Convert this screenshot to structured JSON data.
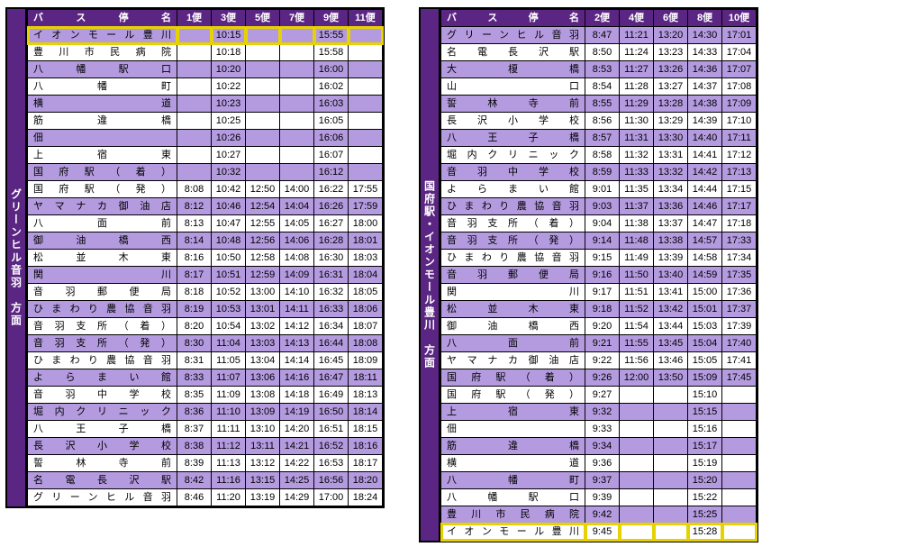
{
  "colors": {
    "header_bg": "#5b2683",
    "header_fg": "#ffffff",
    "row_even": "#b49be0",
    "row_odd": "#ffffff",
    "highlight_border": "#e6d200"
  },
  "left": {
    "direction": "グリーンヒル音羽　方面",
    "stop_header": "バス停名",
    "trip_headers": [
      "1便",
      "3便",
      "5便",
      "7便",
      "9便",
      "11便"
    ],
    "rows": [
      {
        "stop": "イオンモール豊川",
        "times": [
          "",
          "10:15",
          "",
          "",
          "15:55",
          ""
        ],
        "highlight": true
      },
      {
        "stop": "豊川市民病院",
        "times": [
          "",
          "10:18",
          "",
          "",
          "15:58",
          ""
        ]
      },
      {
        "stop": "八幡駅口",
        "times": [
          "",
          "10:20",
          "",
          "",
          "16:00",
          ""
        ]
      },
      {
        "stop": "八幡町",
        "times": [
          "",
          "10:22",
          "",
          "",
          "16:02",
          ""
        ]
      },
      {
        "stop": "横道",
        "times": [
          "",
          "10:23",
          "",
          "",
          "16:03",
          ""
        ]
      },
      {
        "stop": "筋違橋",
        "times": [
          "",
          "10:25",
          "",
          "",
          "16:05",
          ""
        ]
      },
      {
        "stop": "佃",
        "times": [
          "",
          "10:26",
          "",
          "",
          "16:06",
          ""
        ]
      },
      {
        "stop": "上宿東",
        "times": [
          "",
          "10:27",
          "",
          "",
          "16:07",
          ""
        ]
      },
      {
        "stop": "国府駅（着）",
        "times": [
          "",
          "10:32",
          "",
          "",
          "16:12",
          ""
        ]
      },
      {
        "stop": "国府駅（発）",
        "times": [
          "8:08",
          "10:42",
          "12:50",
          "14:00",
          "16:22",
          "17:55"
        ]
      },
      {
        "stop": "ヤマナカ御油店",
        "times": [
          "8:12",
          "10:46",
          "12:54",
          "14:04",
          "16:26",
          "17:59"
        ]
      },
      {
        "stop": "八面前",
        "times": [
          "8:13",
          "10:47",
          "12:55",
          "14:05",
          "16:27",
          "18:00"
        ]
      },
      {
        "stop": "御油橋西",
        "times": [
          "8:14",
          "10:48",
          "12:56",
          "14:06",
          "16:28",
          "18:01"
        ]
      },
      {
        "stop": "松並木東",
        "times": [
          "8:16",
          "10:50",
          "12:58",
          "14:08",
          "16:30",
          "18:03"
        ]
      },
      {
        "stop": "関川",
        "times": [
          "8:17",
          "10:51",
          "12:59",
          "14:09",
          "16:31",
          "18:04"
        ]
      },
      {
        "stop": "音羽郵便局",
        "times": [
          "8:18",
          "10:52",
          "13:00",
          "14:10",
          "16:32",
          "18:05"
        ]
      },
      {
        "stop": "ひまわり農協音羽",
        "times": [
          "8:19",
          "10:53",
          "13:01",
          "14:11",
          "16:33",
          "18:06"
        ]
      },
      {
        "stop": "音羽支所（着）",
        "times": [
          "8:20",
          "10:54",
          "13:02",
          "14:12",
          "16:34",
          "18:07"
        ]
      },
      {
        "stop": "音羽支所（発）",
        "times": [
          "8:30",
          "11:04",
          "13:03",
          "14:13",
          "16:44",
          "18:08"
        ]
      },
      {
        "stop": "ひまわり農協音羽",
        "times": [
          "8:31",
          "11:05",
          "13:04",
          "14:14",
          "16:45",
          "18:09"
        ]
      },
      {
        "stop": "よらまい館",
        "times": [
          "8:33",
          "11:07",
          "13:06",
          "14:16",
          "16:47",
          "18:11"
        ]
      },
      {
        "stop": "音羽中学校",
        "times": [
          "8:35",
          "11:09",
          "13:08",
          "14:18",
          "16:49",
          "18:13"
        ]
      },
      {
        "stop": "堀内クリニック",
        "times": [
          "8:36",
          "11:10",
          "13:09",
          "14:19",
          "16:50",
          "18:14"
        ]
      },
      {
        "stop": "八王子橋",
        "times": [
          "8:37",
          "11:11",
          "13:10",
          "14:20",
          "16:51",
          "18:15"
        ]
      },
      {
        "stop": "長沢小学校",
        "times": [
          "8:38",
          "11:12",
          "13:11",
          "14:21",
          "16:52",
          "18:16"
        ]
      },
      {
        "stop": "誓林寺前",
        "times": [
          "8:39",
          "11:13",
          "13:12",
          "14:22",
          "16:53",
          "18:17"
        ]
      },
      {
        "stop": "名電長沢駅",
        "times": [
          "8:42",
          "11:16",
          "13:15",
          "14:25",
          "16:56",
          "18:20"
        ]
      },
      {
        "stop": "グリーンヒル音羽",
        "times": [
          "8:46",
          "11:20",
          "13:19",
          "14:29",
          "17:00",
          "18:24"
        ]
      }
    ]
  },
  "right": {
    "direction": "国府駅・イオンモール豊川　方面",
    "stop_header": "バス停名",
    "trip_headers": [
      "2便",
      "4便",
      "6便",
      "8便",
      "10便"
    ],
    "rows": [
      {
        "stop": "グリーンヒル音羽",
        "times": [
          "8:47",
          "11:21",
          "13:20",
          "14:30",
          "17:01"
        ]
      },
      {
        "stop": "名電長沢駅",
        "times": [
          "8:50",
          "11:24",
          "13:23",
          "14:33",
          "17:04"
        ]
      },
      {
        "stop": "大榎橋",
        "times": [
          "8:53",
          "11:27",
          "13:26",
          "14:36",
          "17:07"
        ]
      },
      {
        "stop": "山口",
        "times": [
          "8:54",
          "11:28",
          "13:27",
          "14:37",
          "17:08"
        ]
      },
      {
        "stop": "誓林寺前",
        "times": [
          "8:55",
          "11:29",
          "13:28",
          "14:38",
          "17:09"
        ]
      },
      {
        "stop": "長沢小学校",
        "times": [
          "8:56",
          "11:30",
          "13:29",
          "14:39",
          "17:10"
        ]
      },
      {
        "stop": "八王子橋",
        "times": [
          "8:57",
          "11:31",
          "13:30",
          "14:40",
          "17:11"
        ]
      },
      {
        "stop": "堀内クリニック",
        "times": [
          "8:58",
          "11:32",
          "13:31",
          "14:41",
          "17:12"
        ]
      },
      {
        "stop": "音羽中学校",
        "times": [
          "8:59",
          "11:33",
          "13:32",
          "14:42",
          "17:13"
        ]
      },
      {
        "stop": "よらまい館",
        "times": [
          "9:01",
          "11:35",
          "13:34",
          "14:44",
          "17:15"
        ]
      },
      {
        "stop": "ひまわり農協音羽",
        "times": [
          "9:03",
          "11:37",
          "13:36",
          "14:46",
          "17:17"
        ]
      },
      {
        "stop": "音羽支所（着）",
        "times": [
          "9:04",
          "11:38",
          "13:37",
          "14:47",
          "17:18"
        ]
      },
      {
        "stop": "音羽支所（発）",
        "times": [
          "9:14",
          "11:48",
          "13:38",
          "14:57",
          "17:33"
        ]
      },
      {
        "stop": "ひまわり農協音羽",
        "times": [
          "9:15",
          "11:49",
          "13:39",
          "14:58",
          "17:34"
        ]
      },
      {
        "stop": "音羽郵便局",
        "times": [
          "9:16",
          "11:50",
          "13:40",
          "14:59",
          "17:35"
        ]
      },
      {
        "stop": "関川",
        "times": [
          "9:17",
          "11:51",
          "13:41",
          "15:00",
          "17:36"
        ]
      },
      {
        "stop": "松並木東",
        "times": [
          "9:18",
          "11:52",
          "13:42",
          "15:01",
          "17:37"
        ]
      },
      {
        "stop": "御油橋西",
        "times": [
          "9:20",
          "11:54",
          "13:44",
          "15:03",
          "17:39"
        ]
      },
      {
        "stop": "八面前",
        "times": [
          "9:21",
          "11:55",
          "13:45",
          "15:04",
          "17:40"
        ]
      },
      {
        "stop": "ヤマナカ御油店",
        "times": [
          "9:22",
          "11:56",
          "13:46",
          "15:05",
          "17:41"
        ]
      },
      {
        "stop": "国府駅（着）",
        "times": [
          "9:26",
          "12:00",
          "13:50",
          "15:09",
          "17:45"
        ]
      },
      {
        "stop": "国府駅（発）",
        "times": [
          "9:27",
          "",
          "",
          "15:10",
          ""
        ]
      },
      {
        "stop": "上宿東",
        "times": [
          "9:32",
          "",
          "",
          "15:15",
          ""
        ]
      },
      {
        "stop": "佃",
        "times": [
          "9:33",
          "",
          "",
          "15:16",
          ""
        ]
      },
      {
        "stop": "筋違橋",
        "times": [
          "9:34",
          "",
          "",
          "15:17",
          ""
        ]
      },
      {
        "stop": "横道",
        "times": [
          "9:36",
          "",
          "",
          "15:19",
          ""
        ]
      },
      {
        "stop": "八幡町",
        "times": [
          "9:37",
          "",
          "",
          "15:20",
          ""
        ]
      },
      {
        "stop": "八幡駅口",
        "times": [
          "9:39",
          "",
          "",
          "15:22",
          ""
        ]
      },
      {
        "stop": "豊川市民病院",
        "times": [
          "9:42",
          "",
          "",
          "15:25",
          ""
        ]
      },
      {
        "stop": "イオンモール豊川",
        "times": [
          "9:45",
          "",
          "",
          "15:28",
          ""
        ],
        "highlight": true
      }
    ]
  }
}
